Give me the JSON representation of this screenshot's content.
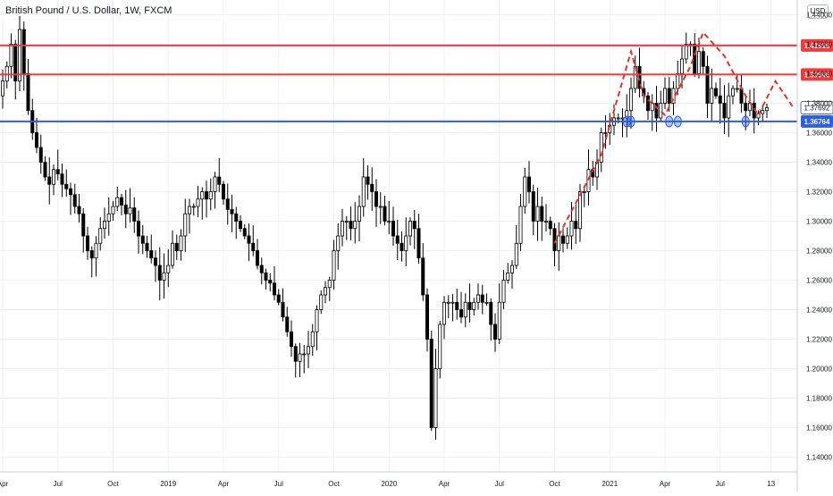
{
  "header": {
    "title": "British Pound / U.S. Dollar, 1W, FXCM",
    "currency": "USD"
  },
  "colors": {
    "up_candle_fill": "#ffffff",
    "down_candle_fill": "#000000",
    "candle_stroke": "#000000",
    "resistance_line": "#f23a3a",
    "support_line": "#2a5ee8",
    "annotation": "#e8302a",
    "grid": "#eef0f3"
  },
  "chart_data": {
    "type": "candlestick",
    "title": "British Pound / U.S. Dollar, 1W, FXCM",
    "ylim": [
      1.13,
      1.45
    ],
    "y_ticks": [
      "1.44000",
      "1.42000",
      "1.40000",
      "1.38000",
      "1.36000",
      "1.34000",
      "1.32000",
      "1.30000",
      "1.28000",
      "1.26000",
      "1.24000",
      "1.22000",
      "1.20000",
      "1.18000",
      "1.16000",
      "1.14000"
    ],
    "x_ticks": [
      "Apr",
      "Jul",
      "Oct",
      "2019",
      "Apr",
      "Jul",
      "Oct",
      "2020",
      "Apr",
      "Jul",
      "Oct",
      "2021",
      "Apr",
      "Jul",
      "13"
    ],
    "x_tick_weeks": [
      0,
      13,
      26,
      39,
      52,
      65,
      78,
      91,
      104,
      117,
      130,
      143,
      156,
      169,
      181
    ],
    "horizontal_levels": [
      {
        "price": 1.41916,
        "label": "1.41916",
        "color": "#f23a3a"
      },
      {
        "price": 1.39946,
        "label": "1.39946",
        "color": "#f23a3a"
      },
      {
        "price": 1.36764,
        "label": "1.36764",
        "color": "#2a5ee8"
      }
    ],
    "last_price": {
      "price": 1.37692,
      "label": "1.37692"
    },
    "closes": [
      1.395,
      1.405,
      1.42,
      1.395,
      1.43,
      1.4,
      1.375,
      1.36,
      1.35,
      1.34,
      1.33,
      1.325,
      1.335,
      1.332,
      1.325,
      1.322,
      1.318,
      1.31,
      1.305,
      1.29,
      1.28,
      1.275,
      1.285,
      1.295,
      1.3,
      1.305,
      1.31,
      1.316,
      1.311,
      1.305,
      1.309,
      1.3,
      1.29,
      1.285,
      1.28,
      1.275,
      1.27,
      1.26,
      1.265,
      1.27,
      1.285,
      1.28,
      1.29,
      1.305,
      1.31,
      1.31,
      1.315,
      1.32,
      1.315,
      1.32,
      1.33,
      1.325,
      1.315,
      1.308,
      1.305,
      1.3,
      1.295,
      1.29,
      1.285,
      1.28,
      1.27,
      1.265,
      1.26,
      1.258,
      1.25,
      1.245,
      1.235,
      1.225,
      1.215,
      1.205,
      1.21,
      1.21,
      1.215,
      1.225,
      1.24,
      1.25,
      1.255,
      1.26,
      1.28,
      1.29,
      1.3,
      1.3,
      1.295,
      1.3,
      1.31,
      1.33,
      1.325,
      1.32,
      1.31,
      1.31,
      1.3,
      1.3,
      1.29,
      1.285,
      1.28,
      1.29,
      1.3,
      1.295,
      1.275,
      1.25,
      1.22,
      1.16,
      1.2,
      1.23,
      1.245,
      1.245,
      1.245,
      1.24,
      1.235,
      1.245,
      1.24,
      1.245,
      1.25,
      1.245,
      1.245,
      1.23,
      1.22,
      1.245,
      1.26,
      1.265,
      1.27,
      1.285,
      1.31,
      1.33,
      1.32,
      1.3,
      1.31,
      1.3,
      1.3,
      1.295,
      1.28,
      1.29,
      1.285,
      1.29,
      1.3,
      1.295,
      1.32,
      1.32,
      1.335,
      1.33,
      1.34,
      1.36,
      1.36,
      1.365,
      1.37,
      1.37,
      1.37,
      1.375,
      1.39,
      1.405,
      1.39,
      1.385,
      1.375,
      1.38,
      1.37,
      1.38,
      1.39,
      1.38,
      1.39,
      1.4,
      1.41,
      1.42,
      1.42,
      1.4,
      1.415,
      1.405,
      1.38,
      1.39,
      1.385,
      1.38,
      1.37,
      1.385,
      1.39,
      1.39,
      1.38,
      1.375,
      1.38,
      1.37,
      1.373,
      1.375,
      1.377
    ]
  }
}
